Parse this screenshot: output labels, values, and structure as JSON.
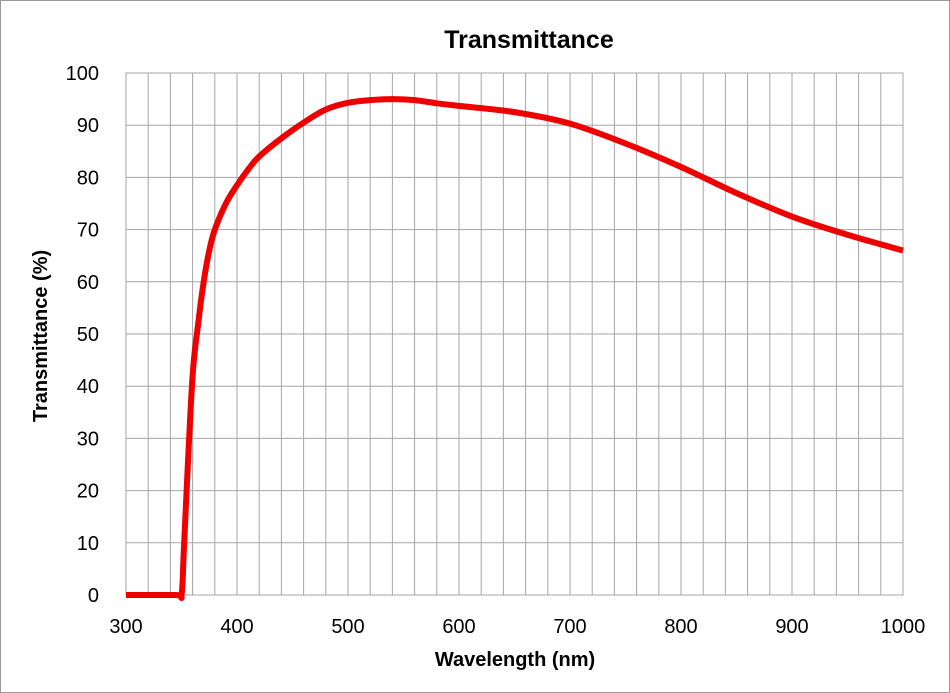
{
  "chart_data": {
    "type": "line",
    "title": "Transmittance",
    "xlabel": "Wavelength (nm)",
    "ylabel": "Transmittance (%)",
    "xlim": [
      300,
      1000
    ],
    "ylim": [
      0,
      100
    ],
    "x_ticks": [
      300,
      400,
      500,
      600,
      700,
      800,
      900,
      1000
    ],
    "y_ticks": [
      0,
      10,
      20,
      30,
      40,
      50,
      60,
      70,
      80,
      90,
      100
    ],
    "x_minor_step": 20,
    "grid": true,
    "legend": "none",
    "series": [
      {
        "color": "#ee0000",
        "x": [
          300,
          345,
          350,
          352,
          355,
          360,
          365,
          370,
          375,
          380,
          390,
          400,
          410,
          420,
          440,
          460,
          480,
          500,
          520,
          540,
          560,
          580,
          600,
          650,
          700,
          750,
          800,
          850,
          900,
          950,
          1000
        ],
        "y": [
          0,
          0,
          0,
          8,
          22,
          42,
          52,
          60,
          66,
          70,
          75,
          78.5,
          81.5,
          84,
          87.5,
          90.5,
          93,
          94.3,
          94.8,
          95,
          94.8,
          94.2,
          93.7,
          92.5,
          90.3,
          86.5,
          82,
          77,
          72.5,
          69,
          66
        ]
      }
    ]
  }
}
